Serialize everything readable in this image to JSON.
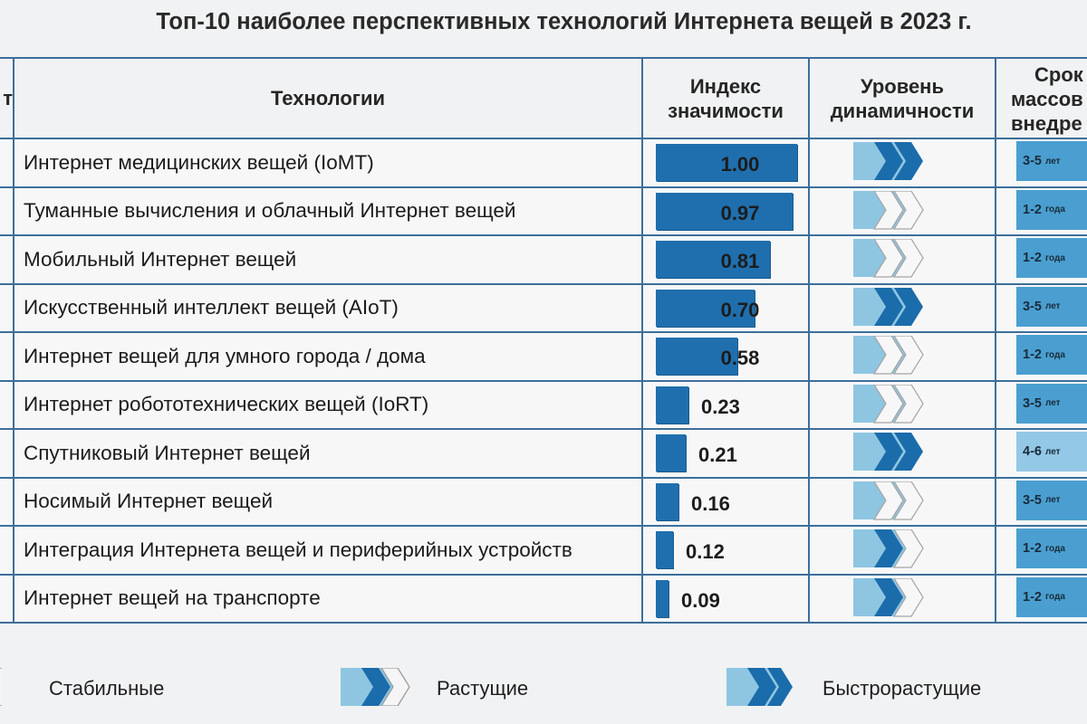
{
  "title": "Топ-10 наиболее перспективных технологий Интернета вещей в 2023 г.",
  "headers": {
    "rank": "т",
    "technology": "Технологии",
    "index_line1": "Индекс",
    "index_line2": "значимости",
    "dyn_line1": "Уровень",
    "dyn_line2": "динамичности",
    "srok_line1": "Срок",
    "srok_line2": "массов",
    "srok_line3": "внедре"
  },
  "colors": {
    "bar": "#1f6fae",
    "grid": "#3d6f9a",
    "arrow_light": "#8ec6e2",
    "arrow_dark": "#1b6cab",
    "srok_fill": "#4a9fd0",
    "srok_fill_long": "#93c8e6"
  },
  "chart_data": {
    "type": "bar",
    "categories": [
      "Интернет медицинских вещей (IoMT)",
      "Туманные вычисления и облачный Интернет вещей",
      "Мобильный Интернет вещей",
      "Искусственный интеллект вещей (AIoT)",
      "Интернет вещей для умного города / дома",
      "Интернет робототехнических вещей (IoRT)",
      "Спутниковый Интернет вещей",
      "Носимый Интернет вещей",
      "Интеграция Интернета вещей и периферийных устройств",
      "Интернет вещей на транспорте"
    ],
    "values": [
      1.0,
      0.97,
      0.81,
      0.7,
      0.58,
      0.23,
      0.21,
      0.16,
      0.12,
      0.09
    ],
    "ylim": [
      0,
      1.0
    ]
  },
  "rows": [
    {
      "name": "Интернет медицинских вещей (IoMT)",
      "value": 1.0,
      "value_text": "1.00",
      "dynamic": "fast",
      "srok": "3-5",
      "unit": "лет"
    },
    {
      "name": "Туманные вычисления и облачный Интернет вещей",
      "value": 0.97,
      "value_text": "0.97",
      "dynamic": "stable",
      "srok": "1-2",
      "unit": "года"
    },
    {
      "name": "Мобильный Интернет вещей",
      "value": 0.81,
      "value_text": "0.81",
      "dynamic": "stable",
      "srok": "1-2",
      "unit": "года"
    },
    {
      "name": "Искусственный интеллект вещей (AIoT)",
      "value": 0.7,
      "value_text": "0.70",
      "dynamic": "fast",
      "srok": "3-5",
      "unit": "лет"
    },
    {
      "name": "Интернет вещей для умного города / дома",
      "value": 0.58,
      "value_text": "0.58",
      "dynamic": "stable",
      "srok": "1-2",
      "unit": "года"
    },
    {
      "name": "Интернет робототехнических вещей (IoRT)",
      "value": 0.23,
      "value_text": "0.23",
      "dynamic": "stable",
      "srok": "3-5",
      "unit": "лет"
    },
    {
      "name": "Спутниковый Интернет вещей",
      "value": 0.21,
      "value_text": "0.21",
      "dynamic": "fast",
      "srok": "4-6",
      "unit": "лет"
    },
    {
      "name": "Носимый Интернет вещей",
      "value": 0.16,
      "value_text": "0.16",
      "dynamic": "stable",
      "srok": "3-5",
      "unit": "лет"
    },
    {
      "name": "Интеграция Интернета вещей и периферийных устройств",
      "value": 0.12,
      "value_text": "0.12",
      "dynamic": "growing",
      "srok": "1-2",
      "unit": "года"
    },
    {
      "name": "Интернет вещей на транспорте",
      "value": 0.09,
      "value_text": "0.09",
      "dynamic": "growing",
      "srok": "1-2",
      "unit": "года"
    }
  ],
  "legend": {
    "stable": "Стабильные",
    "growing": "Растущие",
    "fast": "Быстрорастущие"
  }
}
